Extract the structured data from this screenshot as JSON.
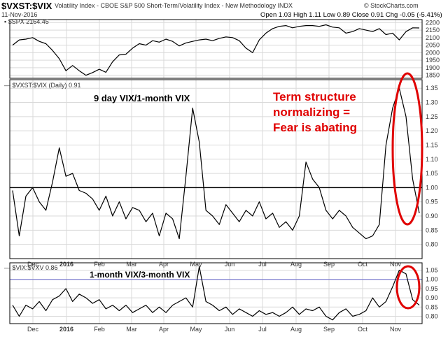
{
  "header": {
    "ticker": "$VXST:$VIX",
    "description": "Volatility Index - CBOE S&P 500 Short-Term/Volatility Index - New Methodology",
    "exchange": "INDX",
    "date": "11-Nov-2016",
    "ohlc": "Open 1.03  High 1.11  Low 0.89  Close 0.91  Chg -0.05 (-5.41%)",
    "logo": "© StockCharts.com"
  },
  "legends": {
    "panel1": "▪ $SPX 2164.45",
    "panel2": "— $VXST:$VIX (Daily) 0.91",
    "panel3": "— $VIX:$VXV 0.86"
  },
  "annotations": {
    "panel2_label": "9 day VIX/1-month VIX",
    "panel3_label": "1-month VIX/3-month VIX",
    "red_lines": [
      "Term structure",
      "normalizing =",
      "Fear is abating"
    ]
  },
  "colors": {
    "line": "#000000",
    "grid": "#d9d9d9",
    "reference": "#000000",
    "reference_panel3": "#7070d0",
    "annotation_red": "#e00000"
  },
  "chart_data": [
    {
      "type": "line",
      "series": [
        {
          "name": "$SPX",
          "values": [
            2050,
            2085,
            2090,
            2100,
            2075,
            2060,
            2015,
            1960,
            1880,
            1915,
            1880,
            1850,
            1868,
            1890,
            1870,
            1940,
            1985,
            1990,
            2030,
            2060,
            2050,
            2080,
            2070,
            2090,
            2075,
            2045,
            2065,
            2075,
            2085,
            2090,
            2080,
            2095,
            2105,
            2100,
            2080,
            2030,
            2000,
            2085,
            2130,
            2160,
            2175,
            2180,
            2165,
            2175,
            2180,
            2180,
            2175,
            2185,
            2170,
            2165,
            2130,
            2140,
            2160,
            2150,
            2140,
            2160,
            2120,
            2130,
            2085,
            2140,
            2165,
            2164.45
          ]
        }
      ],
      "ylim": [
        1830,
        2220
      ],
      "yticks": [
        1850,
        1900,
        1950,
        2000,
        2050,
        2100,
        2150,
        2200
      ],
      "grid": true
    },
    {
      "type": "line",
      "series": [
        {
          "name": "$VXST:$VIX (Daily)",
          "values": [
            0.99,
            0.83,
            0.97,
            1.0,
            0.95,
            0.92,
            1.02,
            1.14,
            1.04,
            1.05,
            0.99,
            0.98,
            0.96,
            0.92,
            0.97,
            0.9,
            0.95,
            0.89,
            0.93,
            0.92,
            0.88,
            0.91,
            0.83,
            0.91,
            0.89,
            0.82,
            1.04,
            1.28,
            1.16,
            0.92,
            0.9,
            0.87,
            0.94,
            0.91,
            0.88,
            0.92,
            0.9,
            0.95,
            0.89,
            0.91,
            0.86,
            0.88,
            0.85,
            0.9,
            1.09,
            1.03,
            1.0,
            0.92,
            0.89,
            0.92,
            0.9,
            0.86,
            0.84,
            0.82,
            0.83,
            0.87,
            1.15,
            1.28,
            1.35,
            1.25,
            1.03,
            0.91
          ]
        }
      ],
      "ylim": [
        0.75,
        1.38
      ],
      "yticks": [
        0.8,
        0.85,
        0.9,
        0.95,
        1.0,
        1.05,
        1.1,
        1.15,
        1.2,
        1.25,
        1.3,
        1.35
      ],
      "reference_line": 1.0,
      "grid": true
    },
    {
      "type": "line",
      "series": [
        {
          "name": "$VIX:$VXV",
          "values": [
            0.86,
            0.8,
            0.86,
            0.84,
            0.88,
            0.83,
            0.89,
            0.91,
            0.95,
            0.88,
            0.92,
            0.9,
            0.87,
            0.89,
            0.84,
            0.86,
            0.83,
            0.86,
            0.82,
            0.84,
            0.86,
            0.82,
            0.85,
            0.82,
            0.86,
            0.88,
            0.9,
            0.85,
            1.07,
            0.88,
            0.86,
            0.83,
            0.85,
            0.81,
            0.84,
            0.82,
            0.8,
            0.83,
            0.81,
            0.82,
            0.8,
            0.82,
            0.85,
            0.81,
            0.84,
            0.83,
            0.85,
            0.8,
            0.78,
            0.82,
            0.84,
            0.8,
            0.81,
            0.83,
            0.9,
            0.85,
            0.88,
            0.96,
            1.05,
            1.03,
            0.89,
            0.86
          ]
        }
      ],
      "ylim": [
        0.76,
        1.09
      ],
      "yticks": [
        0.8,
        0.85,
        0.9,
        0.95,
        1.0,
        1.05
      ],
      "reference_line": 1.0,
      "grid": true
    }
  ],
  "x_axis": {
    "ticks": [
      {
        "label": "Dec",
        "bold": false
      },
      {
        "label": "2016",
        "bold": true
      },
      {
        "label": "Feb",
        "bold": false
      },
      {
        "label": "Mar",
        "bold": false
      },
      {
        "label": "Apr",
        "bold": false
      },
      {
        "label": "May",
        "bold": false
      },
      {
        "label": "Jun",
        "bold": false
      },
      {
        "label": "Jul",
        "bold": false
      },
      {
        "label": "Aug",
        "bold": false
      },
      {
        "label": "Sep",
        "bold": false
      },
      {
        "label": "Oct",
        "bold": false
      },
      {
        "label": "Nov",
        "bold": false
      }
    ]
  }
}
